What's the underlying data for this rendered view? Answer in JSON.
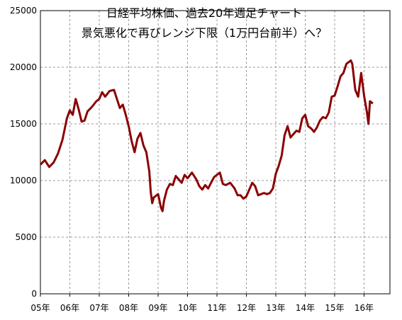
{
  "chart_data": {
    "type": "line",
    "title": "日経平均株価、過去20年週足チャート",
    "subtitle": "景気悪化で再びレンジ下限（1万円台前半）へ？",
    "xlabel": "",
    "ylabel": "",
    "ylim": [
      0,
      25000
    ],
    "yticks": [
      "0",
      "5000",
      "10000",
      "15000",
      "20000",
      "25000"
    ],
    "xticks": [
      "05年",
      "06年",
      "07年",
      "08年",
      "09年",
      "10年",
      "11年",
      "12年",
      "13年",
      "14年",
      "15年",
      "16年"
    ],
    "grid": true,
    "line_color": "#8b0000",
    "series": [
      {
        "x": [
          2005.0,
          2005.15,
          2005.3,
          2005.45,
          2005.6,
          2005.75,
          2005.9,
          2006.0,
          2006.1,
          2006.2,
          2006.3,
          2006.4,
          2006.5,
          2006.6,
          2006.75,
          2006.9,
          2007.0,
          2007.1,
          2007.2,
          2007.35,
          2007.5,
          2007.6,
          2007.7,
          2007.8,
          2007.9,
          2008.0,
          2008.1,
          2008.2,
          2008.3,
          2008.4,
          2008.5,
          2008.6,
          2008.7,
          2008.75,
          2008.8,
          2008.85,
          2008.9,
          2009.0,
          2009.1,
          2009.15,
          2009.2,
          2009.3,
          2009.4,
          2009.5,
          2009.6,
          2009.7,
          2009.8,
          2009.9,
          2010.0,
          2010.15,
          2010.3,
          2010.4,
          2010.5,
          2010.6,
          2010.7,
          2010.8,
          2010.9,
          2011.0,
          2011.1,
          2011.2,
          2011.3,
          2011.45,
          2011.6,
          2011.7,
          2011.8,
          2011.9,
          2012.0,
          2012.1,
          2012.2,
          2012.3,
          2012.4,
          2012.5,
          2012.6,
          2012.7,
          2012.8,
          2012.9,
          2013.0,
          2013.1,
          2013.2,
          2013.3,
          2013.4,
          2013.5,
          2013.6,
          2013.7,
          2013.8,
          2013.9,
          2014.0,
          2014.1,
          2014.2,
          2014.3,
          2014.4,
          2014.5,
          2014.6,
          2014.7,
          2014.8,
          2014.9,
          2015.0,
          2015.1,
          2015.2,
          2015.3,
          2015.4,
          2015.5,
          2015.55,
          2015.6,
          2015.7,
          2015.8,
          2015.9,
          2016.0,
          2016.1,
          2016.15,
          2016.2,
          2016.3
        ],
        "values": [
          11400,
          11800,
          11200,
          11600,
          12400,
          13600,
          15500,
          16200,
          15800,
          17200,
          16300,
          15200,
          15300,
          16100,
          16500,
          17000,
          17200,
          17800,
          17400,
          17900,
          18000,
          17200,
          16400,
          16700,
          15800,
          14800,
          13500,
          12500,
          13700,
          14200,
          13100,
          12500,
          10800,
          9000,
          8000,
          8500,
          8600,
          8800,
          7600,
          7300,
          8200,
          9200,
          9700,
          9600,
          10400,
          10100,
          9800,
          10500,
          10200,
          10700,
          10100,
          9500,
          9200,
          9600,
          9300,
          9800,
          10300,
          10500,
          10700,
          9700,
          9600,
          9800,
          9300,
          8700,
          8700,
          8400,
          8600,
          9200,
          9800,
          9500,
          8700,
          8800,
          8900,
          8800,
          8900,
          9300,
          10600,
          11300,
          12200,
          14000,
          14800,
          13800,
          14100,
          14400,
          14300,
          15500,
          15800,
          14800,
          14600,
          14300,
          14700,
          15300,
          15600,
          15500,
          16000,
          17400,
          17500,
          18300,
          19200,
          19500,
          20300,
          20500,
          20600,
          20300,
          18000,
          17400,
          19500,
          17500,
          16000,
          15000,
          17000,
          16800
        ]
      }
    ]
  }
}
